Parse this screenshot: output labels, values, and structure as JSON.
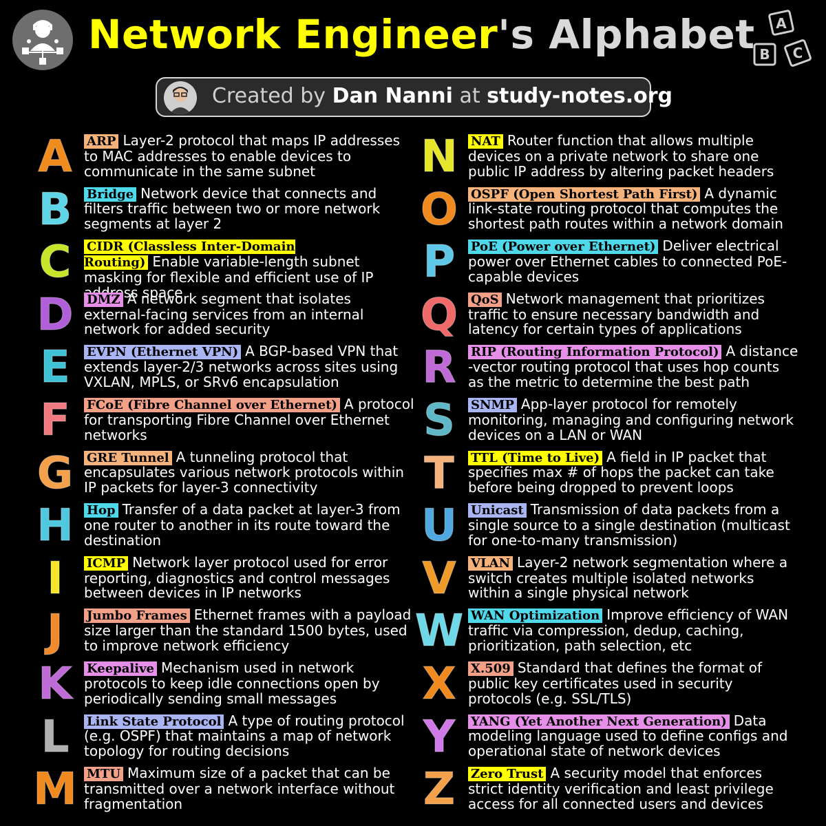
{
  "header": {
    "title_part1": "Network Engineer",
    "title_part2": "'s Alphabet",
    "credit_prefix": "Created by",
    "credit_author": "Dan Nanni",
    "credit_mid": "at",
    "credit_site": "study-notes.org",
    "blocks_letters": [
      "A",
      "B",
      "C"
    ]
  },
  "colors": {
    "orange": "#f5b27a",
    "cyan": "#4fd7ea",
    "yellow": "#ffff00",
    "pink": "#e58fe8",
    "periwinkle": "#a9b4f2",
    "salmon": "#f2a088",
    "green": "#c9e830",
    "purple": "#b15fd8"
  },
  "left": [
    {
      "letter": "A",
      "letter_color": "#f08b1e",
      "term": "ARP",
      "term_bg": "#f5b27a",
      "text": "Layer-2 protocol that maps IP addresses to MAC addresses to enable devices to communicate in the same subnet"
    },
    {
      "letter": "B",
      "letter_color": "#5fd6e8",
      "term": "Bridge",
      "term_bg": "#4fd7ea",
      "text": "Network device that connects and filters traffic between two or more network segments at layer 2"
    },
    {
      "letter": "C",
      "letter_color": "#c7e62a",
      "term": "CIDR (Classless Inter-Domain Routing)",
      "term_bg": "#ffff00",
      "text": "Enable variable-length subnet masking for flexible and efficient use of IP address space"
    },
    {
      "letter": "D",
      "letter_color": "#b15fd8",
      "term": "DMZ",
      "term_bg": "#e58fe8",
      "text": "A network segment that isolates external-facing services from an internal network for added security"
    },
    {
      "letter": "E",
      "letter_color": "#3fc2d6",
      "term": "EVPN (Ethernet VPN)",
      "term_bg": "#a9b4f2",
      "text": "A BGP-based VPN that extends layer-2/3 networks across sites using VXLAN, MPLS, or SRv6 encapsulation"
    },
    {
      "letter": "F",
      "letter_color": "#f07a80",
      "term": "FCoE (Fibre Channel over Ethernet)",
      "term_bg": "#f2a088",
      "text": "A protocol for transporting Fibre Channel over Ethernet networks"
    },
    {
      "letter": "G",
      "letter_color": "#f5a04a",
      "term": "GRE Tunnel",
      "term_bg": "#f5b27a",
      "text": "A tunneling protocol that encapsulates various network protocols within IP packets for layer-3 connectivity"
    },
    {
      "letter": "H",
      "letter_color": "#4fc8e0",
      "term": "Hop",
      "term_bg": "#4fd7ea",
      "text": "Transfer of a data packet at layer-3 from one router to another in its route toward the destination"
    },
    {
      "letter": "I",
      "letter_color": "#f5e62a",
      "term": "ICMP",
      "term_bg": "#ffff00",
      "text": "Network layer protocol used for error reporting, diagnostics and control messages between devices in IP networks"
    },
    {
      "letter": "J",
      "letter_color": "#f08a2a",
      "term": "Jumbo Frames",
      "term_bg": "#f2a088",
      "text": "Ethernet frames with a payload size larger than the standard 1500 bytes, used to improve network efficiency"
    },
    {
      "letter": "K",
      "letter_color": "#c06ad8",
      "term": "Keepalive",
      "term_bg": "#e58fe8",
      "text": "Mechanism used in network protocols to keep idle connections open by periodically sending small messages"
    },
    {
      "letter": "L",
      "letter_color": "#b0b0b0",
      "term": "Link State Protocol",
      "term_bg": "#a9b4f2",
      "text": "A type of routing protocol (e.g. OSPF) that maintains a map of network topology for routing decisions"
    },
    {
      "letter": "M",
      "letter_color": "#f08a1e",
      "term": "MTU",
      "term_bg": "#f2a088",
      "text": "Maximum size of a packet that can be transmitted over a network interface without fragmentation"
    }
  ],
  "right": [
    {
      "letter": "N",
      "letter_color": "#e6e62a",
      "term": "NAT",
      "term_bg": "#ffff00",
      "text": "Router function that allows multiple devices on a private network to share one public IP address by altering packet headers"
    },
    {
      "letter": "O",
      "letter_color": "#f08a1e",
      "term": "OSPF (Open Shortest Path First)",
      "term_bg": "#f5b27a",
      "text": "A dynamic link-state routing protocol that computes the shortest path routes within a network domain"
    },
    {
      "letter": "P",
      "letter_color": "#5fc8e8",
      "term": "PoE (Power over Ethernet)",
      "term_bg": "#4fd7ea",
      "text": "Deliver electrical power over Ethernet cables to connected PoE-capable devices"
    },
    {
      "letter": "Q",
      "letter_color": "#f06a6a",
      "term": "QoS",
      "term_bg": "#f2a088",
      "text": "Network management that prioritizes traffic to ensure necessary bandwidth and latency for certain types of applications"
    },
    {
      "letter": "R",
      "letter_color": "#c06ad8",
      "term": "RIP (Routing Information Protocol)",
      "term_bg": "#e58fe8",
      "text": "A distance -vector routing protocol that uses hop counts as the metric to determine the best path"
    },
    {
      "letter": "S",
      "letter_color": "#5fb8c8",
      "term": "SNMP",
      "term_bg": "#a9b4f2",
      "text": "App-layer protocol for remotely monitoring, managing and configuring network devices on a LAN or WAN"
    },
    {
      "letter": "T",
      "letter_color": "#f5b27a",
      "term": "TTL (Time to Live)",
      "term_bg": "#ffff00",
      "text": "A field in IP packet that specifies max # of hops the packet can take before being dropped to prevent loops"
    },
    {
      "letter": "U",
      "letter_color": "#4fa8e0",
      "term": "Unicast",
      "term_bg": "#a9b4f2",
      "text": "Transmission of data packets from a single source to a single destination (multicast for one-to-many transmission)"
    },
    {
      "letter": "V",
      "letter_color": "#f09a2a",
      "term": "VLAN",
      "term_bg": "#f5b27a",
      "text": "Layer-2 network segmentation where a switch creates multiple isolated networks within a single physical network"
    },
    {
      "letter": "W",
      "letter_color": "#6fd8e8",
      "term": "WAN Optimization",
      "term_bg": "#4fd7ea",
      "text": "Improve efficiency of WAN traffic via compression, dedup, caching, prioritization, path selection, etc"
    },
    {
      "letter": "X",
      "letter_color": "#f08a1e",
      "term": "X.509",
      "term_bg": "#f2a088",
      "text": "Standard that defines the format of public key certificates used in security protocols (e.g. SSL/TLS)"
    },
    {
      "letter": "Y",
      "letter_color": "#d07ae8",
      "term": "YANG (Yet Another Next Generation)",
      "term_bg": "#e58fe8",
      "text": "Data modeling language used to define configs and operational state of network devices"
    },
    {
      "letter": "Z",
      "letter_color": "#f5a04a",
      "term": "Zero Trust",
      "term_bg": "#ffff00",
      "text": "A security model that enforces strict identity verification and least privilege access for all connected users and devices"
    }
  ]
}
